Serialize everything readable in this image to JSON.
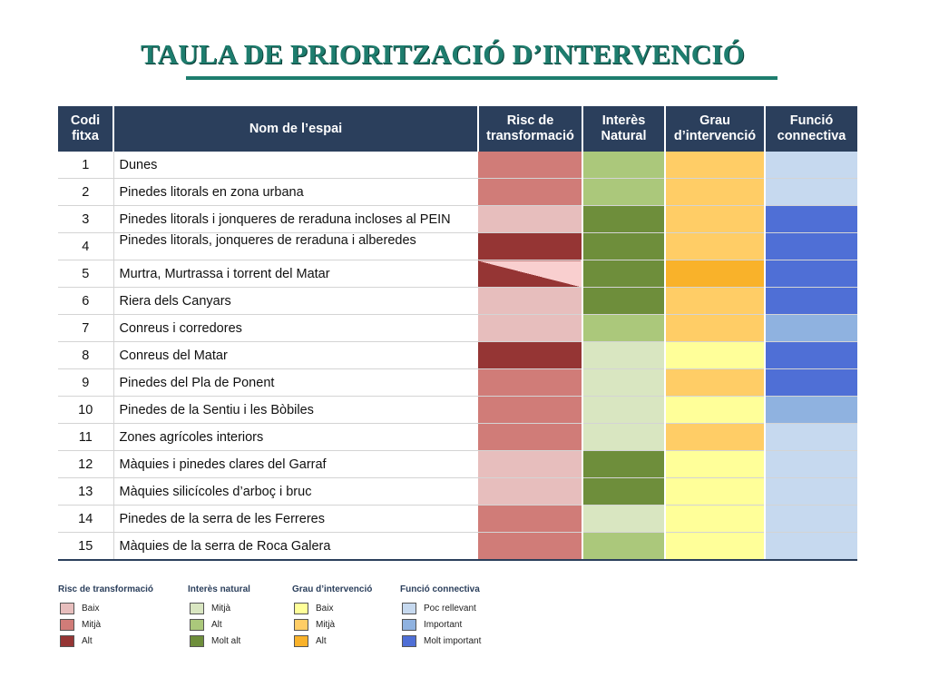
{
  "title": "TAULA DE PRIORITZACIÓ D’INTERVENCIÓ",
  "headers": {
    "code": [
      "Codi",
      "fitxa"
    ],
    "name": "Nom de l’espai",
    "risc": [
      "Risc de",
      "transformació"
    ],
    "interes": [
      "Interès",
      "Natural"
    ],
    "grau": [
      "Grau",
      "d’intervenció"
    ],
    "funcio": [
      "Funció",
      "connectiva"
    ]
  },
  "colors": {
    "risc": {
      "Baix": "#e7bebd",
      "Mitjà": "#d07c78",
      "Alt": "#953534",
      "Baix/Alt": "diagonal"
    },
    "interes": {
      "Mitjà": "#d9e6c1",
      "Alt": "#abc87b",
      "Molt alt": "#6e8e3b"
    },
    "grau": {
      "Baix": "#ffff99",
      "Mitjà": "#ffcd66",
      "Alt": "#f9b22a"
    },
    "funcio": {
      "Poc rellevant": "#c6d9ef",
      "Important": "#8fb2e0",
      "Molt important": "#4f6fd6"
    }
  },
  "rows": [
    {
      "code": "1",
      "name": "Dunes",
      "risc": "Mitjà",
      "interes": "Alt",
      "grau": "Mitjà",
      "funcio": "Poc rellevant"
    },
    {
      "code": "2",
      "name": "Pinedes litorals en zona urbana",
      "risc": "Mitjà",
      "interes": "Alt",
      "grau": "Mitjà",
      "funcio": "Poc rellevant"
    },
    {
      "code": "3",
      "name": "Pinedes litorals i jonqueres de reraduna incloses al PEIN",
      "risc": "Baix",
      "interes": "Molt alt",
      "grau": "Mitjà",
      "funcio": "Molt important"
    },
    {
      "code": "4",
      "name": "Pinedes litorals, jonqueres de reraduna i alberedes",
      "risc": "Alt",
      "interes": "Molt alt",
      "grau": "Mitjà",
      "funcio": "Molt important"
    },
    {
      "code": "5",
      "name": "Murtra, Murtrassa i torrent del Matar",
      "risc": "Baix/Alt",
      "interes": "Molt alt",
      "grau": "Alt",
      "funcio": "Molt important"
    },
    {
      "code": "6",
      "name": "Riera dels Canyars",
      "risc": "Baix",
      "interes": "Molt alt",
      "grau": "Mitjà",
      "funcio": "Molt important"
    },
    {
      "code": "7",
      "name": "Conreus i corredores",
      "risc": "Baix",
      "interes": "Alt",
      "grau": "Mitjà",
      "funcio": "Important"
    },
    {
      "code": "8",
      "name": "Conreus del Matar",
      "risc": "Alt",
      "interes": "Mitjà",
      "grau": "Baix",
      "funcio": "Molt important"
    },
    {
      "code": "9",
      "name": "Pinedes del Pla de Ponent",
      "risc": "Mitjà",
      "interes": "Mitjà",
      "grau": "Mitjà",
      "funcio": "Molt important"
    },
    {
      "code": "10",
      "name": "Pinedes de la Sentiu i les Bòbiles",
      "risc": "Mitjà",
      "interes": "Mitjà",
      "grau": "Baix",
      "funcio": "Important"
    },
    {
      "code": "11",
      "name": "Zones agrícoles interiors",
      "risc": "Mitjà",
      "interes": "Mitjà",
      "grau": "Mitjà",
      "funcio": "Poc rellevant"
    },
    {
      "code": "12",
      "name": "Màquies i pinedes clares del Garraf",
      "risc": "Baix",
      "interes": "Molt alt",
      "grau": "Baix",
      "funcio": "Poc rellevant"
    },
    {
      "code": "13",
      "name": "Màquies silicícoles d’arboç i bruc",
      "risc": "Baix",
      "interes": "Molt alt",
      "grau": "Baix",
      "funcio": "Poc rellevant"
    },
    {
      "code": "14",
      "name": "Pinedes de la serra de les Ferreres",
      "risc": "Mitjà",
      "interes": "Mitjà",
      "grau": "Baix",
      "funcio": "Poc rellevant"
    },
    {
      "code": "15",
      "name": "Màquies de la serra de Roca Galera",
      "risc": "Mitjà",
      "interes": "Alt",
      "grau": "Baix",
      "funcio": "Poc rellevant"
    }
  ],
  "legend": [
    {
      "key": "risc",
      "title": "Risc de transformació",
      "items": [
        "Baix",
        "Mitjà",
        "Alt"
      ]
    },
    {
      "key": "interes",
      "title": "Interès natural",
      "items": [
        "Mitjà",
        "Alt",
        "Molt alt"
      ]
    },
    {
      "key": "grau",
      "title": "Grau d’intervenció",
      "items": [
        "Baix",
        "Mitjà",
        "Alt"
      ]
    },
    {
      "key": "funcio",
      "title": "Funció connectiva",
      "items": [
        "Poc rellevant",
        "Important",
        "Molt important"
      ]
    }
  ]
}
